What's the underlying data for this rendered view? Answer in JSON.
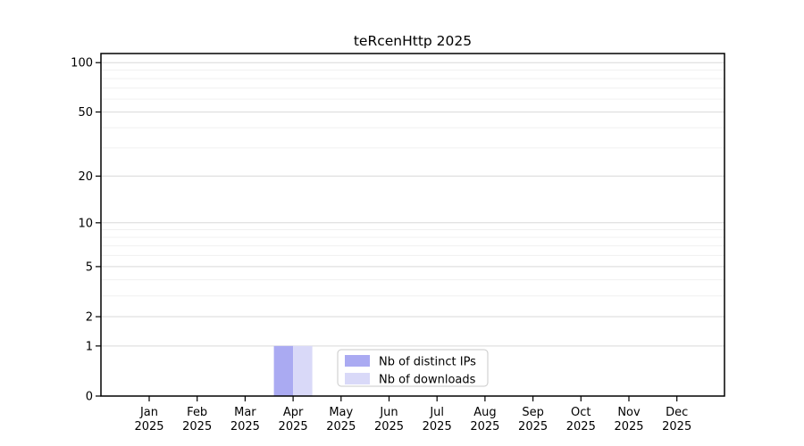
{
  "chart_data": {
    "type": "bar",
    "title": "teRcenHttp 2025",
    "categories": [
      "Jan",
      "Feb",
      "Mar",
      "Apr",
      "May",
      "Jun",
      "Jul",
      "Aug",
      "Sep",
      "Oct",
      "Nov",
      "Dec"
    ],
    "category_year": "2025",
    "series": [
      {
        "name": "Nb of distinct IPs",
        "color": "#aaaaf2",
        "values": [
          0,
          0,
          0,
          1,
          0,
          0,
          0,
          0,
          0,
          0,
          0,
          0
        ]
      },
      {
        "name": "Nb of downloads",
        "color": "#d9d9f8",
        "values": [
          0,
          0,
          0,
          1,
          0,
          0,
          0,
          0,
          0,
          0,
          0,
          0
        ]
      }
    ],
    "xlabel": "",
    "ylabel": "",
    "yscale": "log1p",
    "ylim": [
      0,
      113.6
    ],
    "yticks": [
      0,
      1,
      2,
      5,
      10,
      20,
      50,
      100
    ],
    "yticks_minor": [
      3,
      4,
      6,
      7,
      8,
      9,
      30,
      40,
      60,
      70,
      80,
      90
    ],
    "grid": true,
    "legend_position": "lower center"
  },
  "colors": {
    "grid_major": "#d9d9d9",
    "grid_minor": "#f0f0f0",
    "axis": "#000000",
    "legend_border": "#c9c9c9",
    "legend_bg": "#ffffff"
  }
}
